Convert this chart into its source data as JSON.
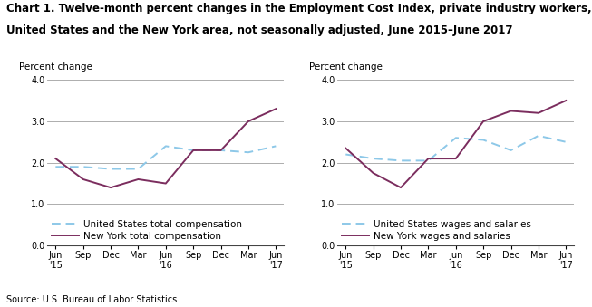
{
  "title_line1": "Chart 1. Twelve-month percent changes in the Employment Cost Index, private industry workers,",
  "title_line2": "United States and the New York area, not seasonally adjusted, June 2015–June 2017",
  "source": "Source: U.S. Bureau of Labor Statistics.",
  "ylabel": "Percent change",
  "x_labels": [
    "Jun\n'15",
    "Sep",
    "Dec",
    "Mar",
    "Jun\n'16",
    "Sep",
    "Dec",
    "Mar",
    "Jun\n'17"
  ],
  "ylim": [
    0.0,
    4.0
  ],
  "yticks": [
    0.0,
    1.0,
    2.0,
    3.0,
    4.0
  ],
  "chart1": {
    "us_total_comp": [
      1.9,
      1.9,
      1.85,
      1.85,
      2.4,
      2.3,
      2.3,
      2.25,
      2.4
    ],
    "ny_total_comp": [
      2.1,
      1.6,
      1.4,
      1.6,
      1.5,
      2.3,
      2.3,
      3.0,
      3.3
    ],
    "legend1": "United States total compensation",
    "legend2": "New York total compensation"
  },
  "chart2": {
    "us_wages": [
      2.2,
      2.1,
      2.05,
      2.05,
      2.6,
      2.55,
      2.3,
      2.65,
      2.5
    ],
    "ny_wages": [
      2.35,
      1.75,
      1.4,
      2.1,
      2.1,
      3.0,
      3.25,
      3.2,
      3.5
    ],
    "legend1": "United States wages and salaries",
    "legend2": "New York wages and salaries"
  },
  "us_color": "#8DC8E8",
  "ny_color": "#7B2D5E",
  "grid_color": "#A0A0A0",
  "bg_color": "#FFFFFF",
  "title_fontsize": 8.5,
  "axis_label_fontsize": 7.5,
  "tick_fontsize": 7,
  "legend_fontsize": 7.5,
  "source_fontsize": 7
}
